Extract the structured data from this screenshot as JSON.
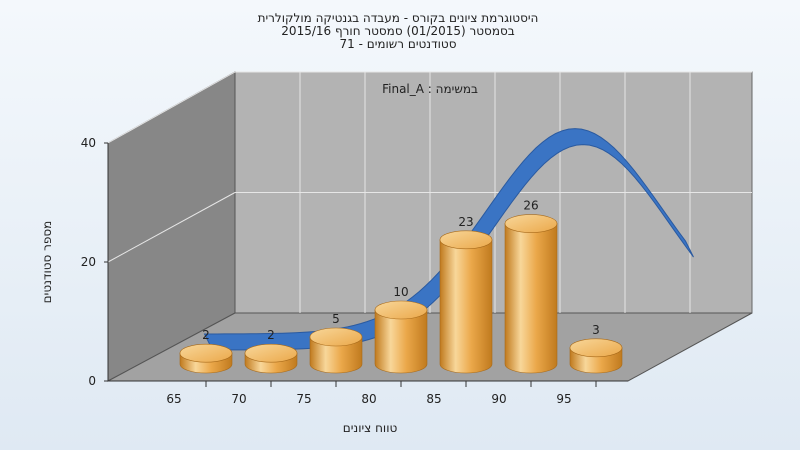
{
  "chart_data": {
    "type": "bar",
    "title_lines": [
      "היסטוגרמת ציונים בקורס - מעבדה בגנטיקה מולקולרית",
      "בסמסטר  (01/2015)  סמסטר חורף 2015/16",
      "סטודנטים רשומים - 71"
    ],
    "task_label": "במשימה : Final_A",
    "xlabel": "טווח ציונים",
    "ylabel": "מספר סטודנטים",
    "x_ticks": [
      "65",
      "70",
      "75",
      "80",
      "85",
      "90",
      "95"
    ],
    "y_ticks": [
      "0",
      "20",
      "40"
    ],
    "ylim": [
      0,
      40
    ],
    "values": [
      2,
      2,
      5,
      10,
      23,
      26,
      3
    ],
    "bar_labels": [
      "2",
      "2",
      "5",
      "10",
      "23",
      "26",
      "3"
    ],
    "curve": {
      "type": "normal-fit",
      "center_bin": 5,
      "sigma_bins": 1.35,
      "peak": 26
    },
    "colors": {
      "bar_light": "#f8d79a",
      "bar_mid": "#eba84a",
      "bar_dark": "#c07a1e",
      "curve": "#3a74c4",
      "curve_dark": "#2a5aa0",
      "back_wall": "#b3b3b3",
      "left_wall": "#878787",
      "floor": "#a2a2a2",
      "grid": "#e6e6e6"
    }
  }
}
